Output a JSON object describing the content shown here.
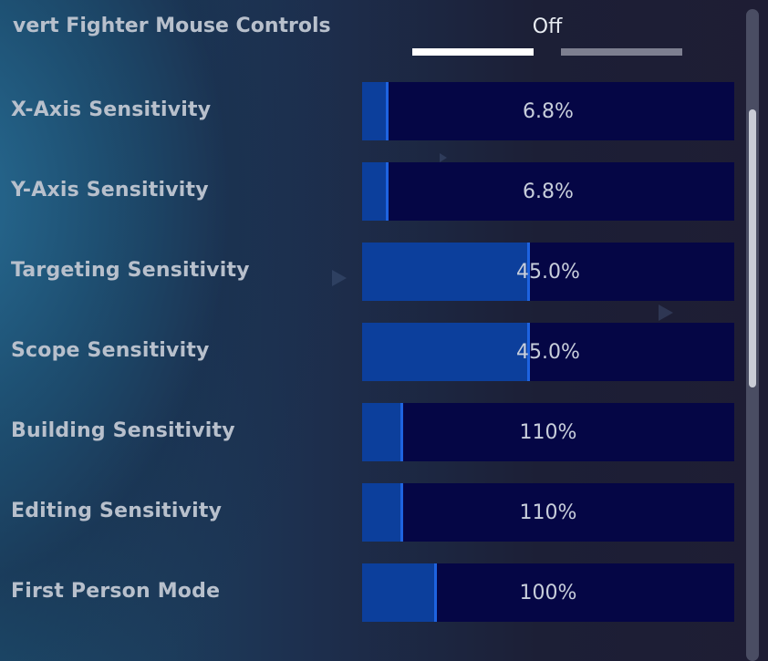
{
  "header": {
    "label": "vert Fighter Mouse Controls",
    "value": "Off",
    "colors": {
      "active": "#ffffff",
      "inactive": "#7d7f90"
    }
  },
  "sliders": [
    {
      "label": "X-Axis Sensitivity",
      "value": "6.8%",
      "fill_fraction": 0.07
    },
    {
      "label": "Y-Axis Sensitivity",
      "value": "6.8%",
      "fill_fraction": 0.07
    },
    {
      "label": "Targeting Sensitivity",
      "value": "45.0%",
      "fill_fraction": 0.45
    },
    {
      "label": "Scope Sensitivity",
      "value": "45.0%",
      "fill_fraction": 0.45
    },
    {
      "label": "Building Sensitivity",
      "value": "110%",
      "fill_fraction": 0.11
    },
    {
      "label": "Editing Sensitivity",
      "value": "110%",
      "fill_fraction": 0.11
    },
    {
      "label": "First Person Mode",
      "value": "100%",
      "fill_fraction": 0.2
    }
  ],
  "colors": {
    "slider_bg": "#050645",
    "slider_fill": "#0c3f9c",
    "slider_edge": "#1e63e0",
    "label_text": "#b8c0cc"
  }
}
